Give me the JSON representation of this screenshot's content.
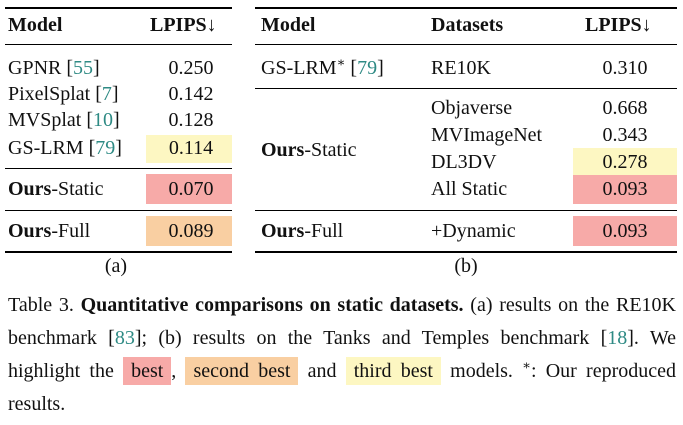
{
  "table_a": {
    "headers": {
      "model": "Model",
      "metric": "LPIPS↓"
    },
    "rows": [
      {
        "name": "GPNR",
        "cite": "55",
        "value": "0.250",
        "hl": ""
      },
      {
        "name": "PixelSplat",
        "cite": "7",
        "value": "0.142",
        "hl": ""
      },
      {
        "name": "MVSplat",
        "cite": "10",
        "value": "0.128",
        "hl": ""
      },
      {
        "name": "GS-LRM",
        "cite": "79",
        "value": "0.114",
        "hl": "third"
      },
      {
        "name_bold": "Ours",
        "name_rest": "-Static",
        "value": "0.070",
        "hl": "best"
      },
      {
        "name_bold": "Ours",
        "name_rest": "-Full",
        "value": "0.089",
        "hl": "second"
      }
    ],
    "label": "(a)"
  },
  "table_b": {
    "headers": {
      "model": "Model",
      "datasets": "Datasets",
      "metric": "LPIPS↓"
    },
    "gslrm": {
      "name": "GS-LRM",
      "star": "∗",
      "cite": "79",
      "dataset": "RE10K",
      "value": "0.310"
    },
    "static": {
      "name_bold": "Ours",
      "name_rest": "-Static",
      "rows": [
        {
          "dataset": "Objaverse",
          "value": "0.668",
          "hl": ""
        },
        {
          "dataset": "MVImageNet",
          "value": "0.343",
          "hl": ""
        },
        {
          "dataset": "DL3DV",
          "value": "0.278",
          "hl": "third"
        },
        {
          "dataset": "All Static",
          "value": "0.093",
          "hl": "best"
        }
      ]
    },
    "full": {
      "name_bold": "Ours",
      "name_rest": "-Full",
      "dataset": "+Dynamic",
      "value": "0.093",
      "hl": "best"
    },
    "label": "(b)"
  },
  "caption": {
    "prefix": "Table 3. ",
    "title": "Quantitative comparisons on static datasets.",
    "t1": " (a) results on the RE10K benchmark [",
    "cite1": "83",
    "t2": "]; (b) results on the Tanks and Temples benchmark  [",
    "cite2": "18",
    "t3": "]. We highlight the ",
    "best": "best",
    "t4": ", ",
    "second": "second best",
    "t5": " and ",
    "third": "third best",
    "t6": " models. ",
    "star": "∗",
    "t7": ": Our reproduced results."
  },
  "colors": {
    "best": "#f7aaa8",
    "second": "#f9cfa2",
    "third": "#fdf7c2",
    "cite": "#2e8a84"
  }
}
